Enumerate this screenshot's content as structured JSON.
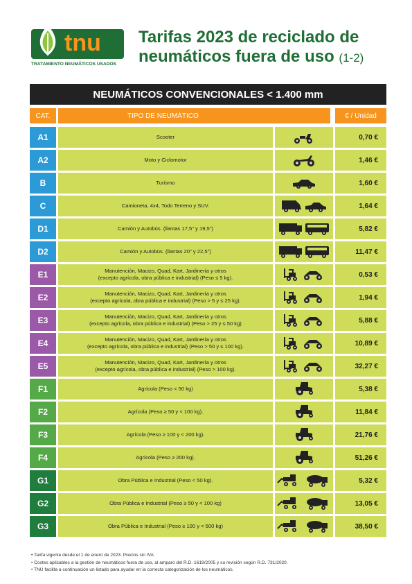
{
  "header": {
    "logo_text": "tnu",
    "logo_subtitle": "TRATAMIENTO NEUMÁTICOS USADOS",
    "title_line1": "Tarifas 2023 de reciclado de",
    "title_line2": "neumáticos fuera de uso",
    "title_suffix": "(1-2)"
  },
  "table": {
    "title": "NEUMÁTICOS CONVENCIONALES < 1.400 mm",
    "columns": [
      "CAT.",
      "TIPO DE NEUMÁTICO",
      "€ / Unidad"
    ],
    "rows": [
      {
        "cat": "A1",
        "desc": [
          "Scooter"
        ],
        "price": "0,70 €"
      },
      {
        "cat": "A2",
        "desc": [
          "Moto y Ciclomotor"
        ],
        "price": "1,46 €"
      },
      {
        "cat": "B",
        "desc": [
          "Turismo"
        ],
        "price": "1,60 €"
      },
      {
        "cat": "C",
        "desc": [
          "Camioneta, 4x4, Todo Terreno y SUV."
        ],
        "price": "1,64 €"
      },
      {
        "cat": "D1",
        "desc": [
          "Camión y Autobús. (llantas 17,5\" y 19,5\")"
        ],
        "price": "5,82 €"
      },
      {
        "cat": "D2",
        "desc": [
          "Camión y Autobús. (llantas 20\" y 22,5\")"
        ],
        "price": "11,47 €"
      },
      {
        "cat": "E1",
        "desc": [
          "Manutención, Macizo, Quad, Kart, Jardinería y otros",
          "(excepto agrícola, obra pública e industrial)  (Peso ≤ 5 kg)."
        ],
        "price": "0,53 €"
      },
      {
        "cat": "E2",
        "desc": [
          "Manutención, Macizo, Quad, Kart, Jardinería y otros",
          "(excepto agrícola, obra pública e industrial) (Peso > 5 y ≤ 25 kg)."
        ],
        "price": "1,94 €"
      },
      {
        "cat": "E3",
        "desc": [
          "Manutención, Macizo, Quad, Kart, Jardinería y otros",
          "(excepto agrícola, obra pública e industrial) (Peso > 25 y ≤ 50 kg)"
        ],
        "price": "5,88 €"
      },
      {
        "cat": "E4",
        "desc": [
          "Manutención, Macizo, Quad, Kart, Jardinería y otros",
          "(excepto agrícola, obra pública e industrial) (Peso > 50 y ≤ 100 kg)."
        ],
        "price": "10,89 €"
      },
      {
        "cat": "E5",
        "desc": [
          "Manutención, Macizo, Quad, Kart, Jardinería y otros",
          "(excepto agrícola, obra pública e industrial) (Peso > 100 kg)."
        ],
        "price": "32,27 €"
      },
      {
        "cat": "F1",
        "desc": [
          "Agrícola (Peso < 50 kg)"
        ],
        "price": "5,38 €"
      },
      {
        "cat": "F2",
        "desc": [
          "Agrícola (Peso ≥ 50 y < 100 kg)."
        ],
        "price": "11,84 €"
      },
      {
        "cat": "F3",
        "desc": [
          "Agrícola (Peso ≥ 100 y < 200 kg)."
        ],
        "price": "21,76 €"
      },
      {
        "cat": "F4",
        "desc": [
          "Agrícola (Peso ≥ 200 kg)."
        ],
        "price": "51,26 €"
      },
      {
        "cat": "G1",
        "desc": [
          "Obra Pública e Industrial (Peso < 50 kg)."
        ],
        "price": "5,32 €"
      },
      {
        "cat": "G2",
        "desc": [
          "Obra Pública e Industrial (Peso ≥ 50 y < 100 kg)"
        ],
        "price": "13,05 €"
      },
      {
        "cat": "G3",
        "desc": [
          "Obra Pública e Industrial (Peso ≥ 100 y < 500 kg)"
        ],
        "price": "38,50 €"
      }
    ]
  },
  "footnotes": [
    "• Tarifa vigente desde el 1 de enero de 2023. Precios sin IVA",
    "• Costes aplicables a la gestión de neumáticos fuera de uso, al amparo del R.D. 1619/2005 y su revisión según R.D. 731/2020.",
    "• TNU facilita a continuación un listado para ayudar en la correcta categorización de los neumáticos."
  ]
}
